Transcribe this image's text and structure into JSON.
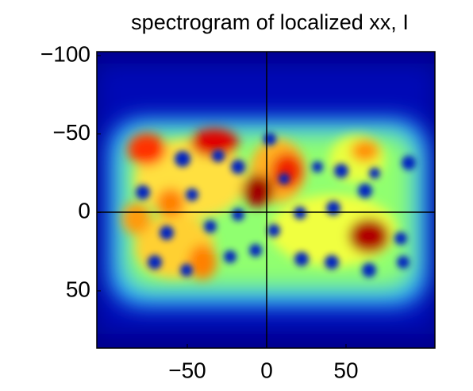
{
  "chart_data": {
    "type": "heatmap",
    "title": "spectrogram of localized xx, I",
    "xlim": [
      -107,
      106
    ],
    "ylim": [
      -102.5,
      86.5
    ],
    "y_reversed": true,
    "xticks": [
      {
        "value": -50,
        "label": "−50"
      },
      0,
      50
    ],
    "yticks": [
      {
        "value": -100,
        "label": "−100"
      },
      {
        "value": -50,
        "label": "−50"
      },
      0,
      50
    ]
  }
}
